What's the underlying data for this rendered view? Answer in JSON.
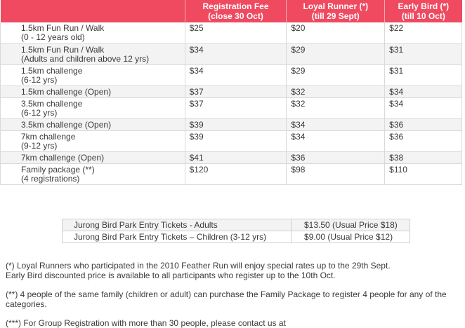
{
  "fee_table": {
    "headers": [
      "",
      "Registration Fee\n(close 30 Oct)",
      "Loyal Runner (*)\n(till 29 Sept)",
      "Early Bird (*)\n(till 10 Oct)"
    ],
    "rows": [
      {
        "category": "1.5km Fun Run / Walk",
        "sub": "(0 - 12 years old)",
        "reg": "$25",
        "loyal": "$20",
        "early": "$22"
      },
      {
        "category": "1.5km Fun Run / Walk",
        "sub": "(Adults and children above 12 yrs)",
        "reg": "$34",
        "loyal": "$29",
        "early": "$31"
      },
      {
        "category": "1.5km challenge",
        "sub": "(6-12 yrs)",
        "reg": "$34",
        "loyal": "$29",
        "early": "$31"
      },
      {
        "category": "1.5km challenge (Open)",
        "sub": "",
        "reg": "$37",
        "loyal": "$32",
        "early": "$34"
      },
      {
        "category": "3.5km challenge",
        "sub": "(6-12 yrs)",
        "reg": "$37",
        "loyal": "$32",
        "early": "$34"
      },
      {
        "category": "3.5km challenge (Open)",
        "sub": "",
        "reg": "$39",
        "loyal": "$34",
        "early": "$36"
      },
      {
        "category": "7km challenge",
        "sub": "(9-12 yrs)",
        "reg": "$39",
        "loyal": "$34",
        "early": "$36"
      },
      {
        "category": "7km challenge (Open)",
        "sub": "",
        "reg": "$41",
        "loyal": "$36",
        "early": "$38"
      },
      {
        "category": "Family package (**)",
        "sub": "(4 registrations)",
        "reg": "$120",
        "loyal": "$98",
        "early": "$110"
      }
    ]
  },
  "ticket_table": {
    "rows": [
      {
        "label": "Jurong Bird Park Entry Tickets - Adults",
        "price": "$13.50 (Usual Price $18)"
      },
      {
        "label": "Jurong Bird Park Entry Tickets – Children (3-12 yrs)",
        "price": "$9.00 (Usual Price $12)"
      }
    ]
  },
  "notes": {
    "loyal_note": "(*) Loyal Runners who participated in the 2010 Feather Run will enjoy special rates up to the 29th Sept.",
    "early_note": "Early Bird discounted price is available to all participants who register up to the 10th Oct.",
    "family_note": "(**) 4 people of the same family (children or adult) can purchase the Family Package to register 4 people for any of the categories.",
    "group_note": "(***) For Group Registration with more than 30 people, please contact us at"
  }
}
